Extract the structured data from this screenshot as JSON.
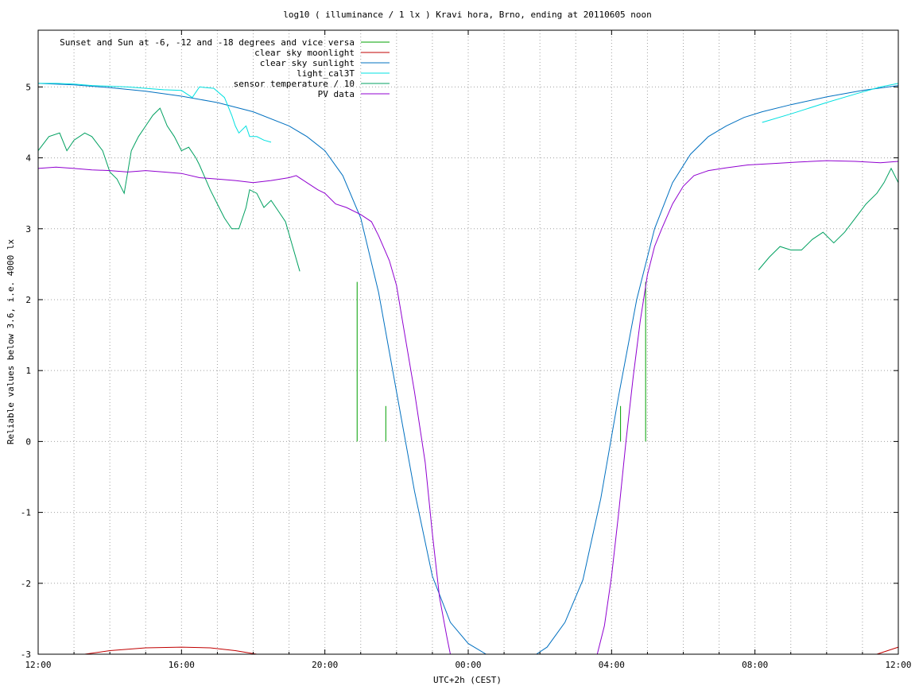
{
  "chart_data": {
    "type": "line",
    "title": "log10 ( illuminance / 1 lx ) Kravi hora, Brno, ending at 20110605 noon",
    "xlabel": "UTC+2h (CEST)",
    "ylabel": "Reliable values below 3.6, i.e. 4000 lx",
    "x_unit": "hours since 12:00",
    "xlim": [
      0,
      24
    ],
    "ylim": [
      -3,
      5.8
    ],
    "x_ticks": [
      {
        "x": 0,
        "label": "12:00"
      },
      {
        "x": 4,
        "label": "16:00"
      },
      {
        "x": 8,
        "label": "20:00"
      },
      {
        "x": 12,
        "label": "00:00"
      },
      {
        "x": 16,
        "label": "04:00"
      },
      {
        "x": 20,
        "label": "08:00"
      },
      {
        "x": 24,
        "label": "12:00"
      }
    ],
    "y_ticks": [
      {
        "y": -3,
        "label": "-3"
      },
      {
        "y": -2,
        "label": "-2"
      },
      {
        "y": -1,
        "label": "-1"
      },
      {
        "y": 0,
        "label": "0"
      },
      {
        "y": 1,
        "label": "1"
      },
      {
        "y": 2,
        "label": "2"
      },
      {
        "y": 3,
        "label": "3"
      },
      {
        "y": 4,
        "label": "4"
      },
      {
        "y": 5,
        "label": "5"
      }
    ],
    "grid": true,
    "legend_position": "top-left",
    "series": [
      {
        "name": "Sunset and Sun at -6, -12 and -18 degrees and vice versa",
        "color": "#00a000",
        "style": "impulses",
        "points": [
          [
            8.9,
            2.25
          ],
          [
            9.7,
            0.5
          ],
          [
            10.55,
            0
          ],
          [
            12.35,
            0
          ],
          [
            13.35,
            0
          ],
          [
            15.15,
            0
          ],
          [
            16.25,
            0.5
          ],
          [
            16.95,
            2.25
          ]
        ]
      },
      {
        "name": "clear sky moonlight",
        "color": "#c00000",
        "points": [
          [
            1.3,
            -3.0
          ],
          [
            2.0,
            -2.95
          ],
          [
            3.0,
            -2.91
          ],
          [
            4.0,
            -2.9
          ],
          [
            4.8,
            -2.91
          ],
          [
            5.5,
            -2.95
          ],
          [
            6.1,
            -3.0
          ],
          [
            23.4,
            -3.0
          ],
          [
            24.0,
            -2.9
          ]
        ]
      },
      {
        "name": "clear sky sunlight",
        "color": "#0070c0",
        "points": [
          [
            0,
            5.05
          ],
          [
            1,
            5.03
          ],
          [
            2,
            4.99
          ],
          [
            3,
            4.94
          ],
          [
            4,
            4.87
          ],
          [
            5,
            4.78
          ],
          [
            6,
            4.65
          ],
          [
            7,
            4.45
          ],
          [
            7.5,
            4.3
          ],
          [
            8,
            4.1
          ],
          [
            8.5,
            3.75
          ],
          [
            9,
            3.15
          ],
          [
            9.5,
            2.1
          ],
          [
            10,
            0.7
          ],
          [
            10.5,
            -0.7
          ],
          [
            11,
            -1.9
          ],
          [
            11.5,
            -2.55
          ],
          [
            12,
            -2.85
          ],
          [
            12.5,
            -3.0
          ],
          [
            13.9,
            -3.0
          ],
          [
            14.2,
            -2.9
          ],
          [
            14.7,
            -2.55
          ],
          [
            15.2,
            -1.95
          ],
          [
            15.7,
            -0.8
          ],
          [
            16.2,
            0.65
          ],
          [
            16.7,
            2.0
          ],
          [
            17.2,
            3.0
          ],
          [
            17.7,
            3.65
          ],
          [
            18.2,
            4.05
          ],
          [
            18.7,
            4.3
          ],
          [
            19.2,
            4.45
          ],
          [
            19.7,
            4.57
          ],
          [
            20.2,
            4.65
          ],
          [
            21,
            4.75
          ],
          [
            22,
            4.86
          ],
          [
            23,
            4.95
          ],
          [
            24,
            5.02
          ]
        ]
      },
      {
        "name": "light_cal3T",
        "color": "#00e0e0",
        "points": [
          [
            0,
            5.05
          ],
          [
            0.5,
            5.05
          ],
          [
            1.0,
            5.04
          ],
          [
            1.5,
            5.02
          ],
          [
            2.0,
            5.01
          ],
          [
            2.5,
            5.0
          ],
          [
            3.0,
            4.98
          ],
          [
            3.5,
            4.96
          ],
          [
            4.0,
            4.95
          ],
          [
            4.3,
            4.85
          ],
          [
            4.5,
            5.0
          ],
          [
            4.9,
            4.98
          ],
          [
            5.2,
            4.85
          ],
          [
            5.4,
            4.6
          ],
          [
            5.5,
            4.45
          ],
          [
            5.6,
            4.35
          ],
          [
            5.8,
            4.45
          ],
          [
            5.9,
            4.3
          ],
          [
            6.1,
            4.3
          ],
          [
            6.3,
            4.25
          ],
          [
            6.5,
            4.22
          ],
          [
            20.2,
            4.5
          ],
          [
            21.0,
            4.62
          ],
          [
            22.0,
            4.78
          ],
          [
            22.8,
            4.9
          ],
          [
            23.5,
            5.0
          ],
          [
            24.0,
            5.05
          ]
        ]
      },
      {
        "name": "sensor temperature / 10",
        "color": "#00a060",
        "points": [
          [
            0,
            4.1
          ],
          [
            0.3,
            4.3
          ],
          [
            0.6,
            4.35
          ],
          [
            0.8,
            4.1
          ],
          [
            1.0,
            4.25
          ],
          [
            1.3,
            4.35
          ],
          [
            1.5,
            4.3
          ],
          [
            1.8,
            4.1
          ],
          [
            2.0,
            3.8
          ],
          [
            2.2,
            3.7
          ],
          [
            2.4,
            3.5
          ],
          [
            2.6,
            4.1
          ],
          [
            2.8,
            4.3
          ],
          [
            3.0,
            4.45
          ],
          [
            3.2,
            4.6
          ],
          [
            3.4,
            4.7
          ],
          [
            3.6,
            4.45
          ],
          [
            3.8,
            4.3
          ],
          [
            4.0,
            4.1
          ],
          [
            4.2,
            4.15
          ],
          [
            4.4,
            4.0
          ],
          [
            4.5,
            3.9
          ],
          [
            4.8,
            3.55
          ],
          [
            5.0,
            3.35
          ],
          [
            5.2,
            3.15
          ],
          [
            5.4,
            3.0
          ],
          [
            5.6,
            3.0
          ],
          [
            5.8,
            3.3
          ],
          [
            5.9,
            3.55
          ],
          [
            6.1,
            3.5
          ],
          [
            6.3,
            3.3
          ],
          [
            6.5,
            3.4
          ],
          [
            6.7,
            3.25
          ],
          [
            6.9,
            3.1
          ],
          [
            7.1,
            2.75
          ],
          [
            7.3,
            2.4
          ],
          [
            20.1,
            2.42
          ],
          [
            20.4,
            2.6
          ],
          [
            20.7,
            2.75
          ],
          [
            21.0,
            2.7
          ],
          [
            21.3,
            2.7
          ],
          [
            21.6,
            2.85
          ],
          [
            21.9,
            2.95
          ],
          [
            22.2,
            2.8
          ],
          [
            22.5,
            2.95
          ],
          [
            22.8,
            3.15
          ],
          [
            23.1,
            3.35
          ],
          [
            23.4,
            3.5
          ],
          [
            23.6,
            3.65
          ],
          [
            23.8,
            3.85
          ],
          [
            24.0,
            3.65
          ]
        ]
      },
      {
        "name": "PV data",
        "color": "#9000d0",
        "points": [
          [
            0,
            3.85
          ],
          [
            0.5,
            3.87
          ],
          [
            1.0,
            3.85
          ],
          [
            1.5,
            3.83
          ],
          [
            2.0,
            3.82
          ],
          [
            2.5,
            3.8
          ],
          [
            3.0,
            3.82
          ],
          [
            3.5,
            3.8
          ],
          [
            4.0,
            3.78
          ],
          [
            4.5,
            3.72
          ],
          [
            5.0,
            3.7
          ],
          [
            5.5,
            3.68
          ],
          [
            6.0,
            3.65
          ],
          [
            6.5,
            3.68
          ],
          [
            7.0,
            3.72
          ],
          [
            7.2,
            3.75
          ],
          [
            7.5,
            3.65
          ],
          [
            7.8,
            3.55
          ],
          [
            8.0,
            3.5
          ],
          [
            8.3,
            3.35
          ],
          [
            8.6,
            3.3
          ],
          [
            9.0,
            3.2
          ],
          [
            9.3,
            3.1
          ],
          [
            9.5,
            2.9
          ],
          [
            9.8,
            2.55
          ],
          [
            10.0,
            2.2
          ],
          [
            10.2,
            1.6
          ],
          [
            10.5,
            0.7
          ],
          [
            10.8,
            -0.3
          ],
          [
            11.0,
            -1.3
          ],
          [
            11.2,
            -2.2
          ],
          [
            11.4,
            -2.75
          ],
          [
            11.5,
            -3.0
          ],
          [
            15.6,
            -3.0
          ],
          [
            15.8,
            -2.6
          ],
          [
            16.0,
            -1.9
          ],
          [
            16.2,
            -1.0
          ],
          [
            16.4,
            0.0
          ],
          [
            16.6,
            0.9
          ],
          [
            16.8,
            1.7
          ],
          [
            17.0,
            2.35
          ],
          [
            17.2,
            2.75
          ],
          [
            17.4,
            3.0
          ],
          [
            17.7,
            3.35
          ],
          [
            18.0,
            3.6
          ],
          [
            18.3,
            3.75
          ],
          [
            18.7,
            3.82
          ],
          [
            19.2,
            3.86
          ],
          [
            19.8,
            3.9
          ],
          [
            20.5,
            3.92
          ],
          [
            21.2,
            3.94
          ],
          [
            22.0,
            3.96
          ],
          [
            22.8,
            3.95
          ],
          [
            23.5,
            3.93
          ],
          [
            24.0,
            3.95
          ]
        ]
      }
    ]
  }
}
